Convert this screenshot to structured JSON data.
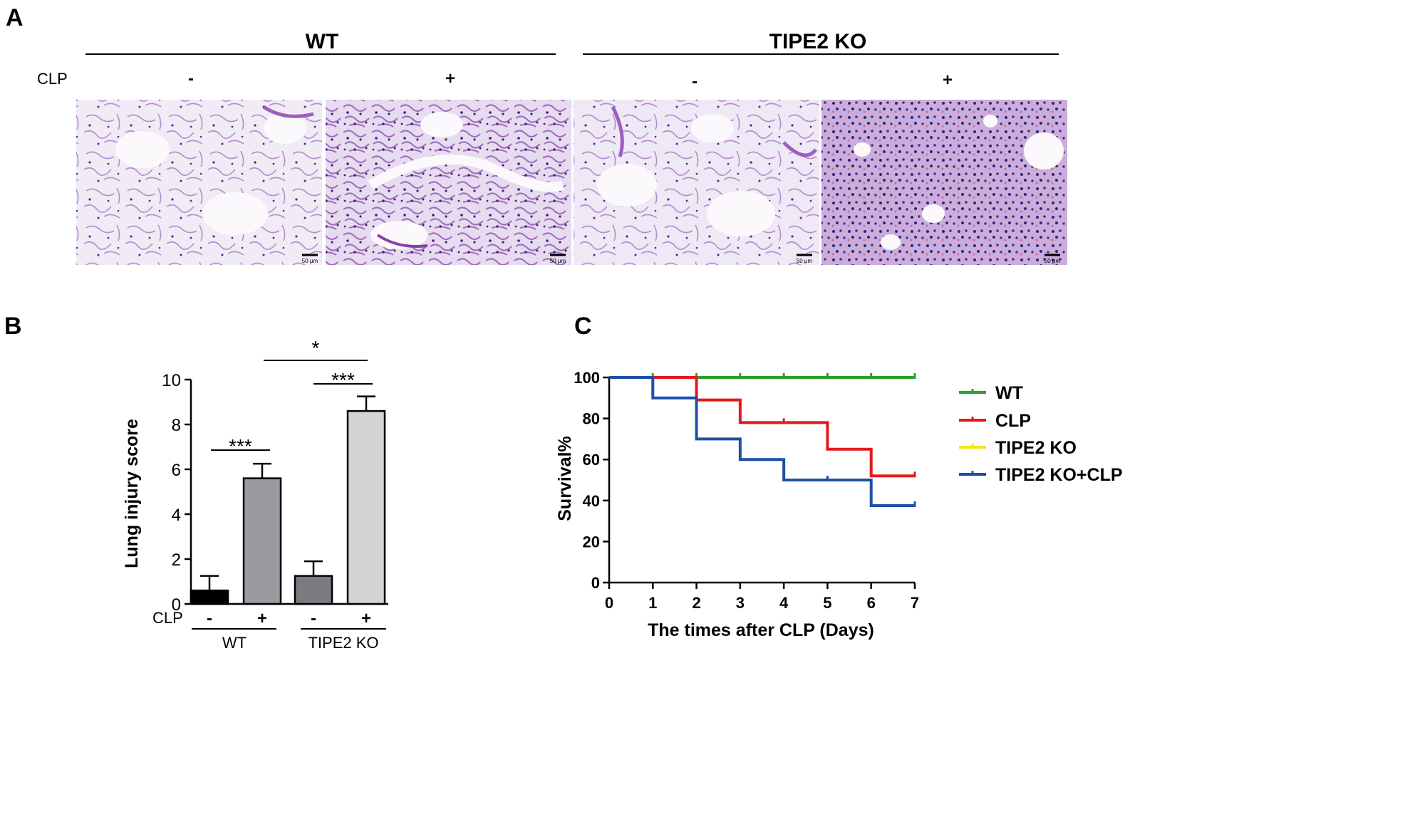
{
  "panel_labels": {
    "a": "A",
    "b": "B",
    "c": "C"
  },
  "panel_a": {
    "groups": [
      "WT",
      "TIPE2 KO"
    ],
    "row_label": "CLP",
    "conditions": [
      "-",
      "+",
      "-",
      "+"
    ],
    "scale_bar": "50 μm",
    "image_tints": [
      "#f1ebf6",
      "#e6dbef",
      "#efe8f5",
      "#d9c7e4"
    ],
    "image_names": [
      "histology-wt-sham",
      "histology-wt-clp",
      "histology-ko-sham",
      "histology-ko-clp"
    ]
  },
  "chart_data": [
    {
      "type": "bar",
      "ylabel": "Lung injury score",
      "ylim": [
        0,
        10
      ],
      "yticks": [
        0,
        2,
        4,
        6,
        8,
        10
      ],
      "row_label": "CLP",
      "categories": [
        "-",
        "+",
        "-",
        "+"
      ],
      "groups": [
        "WT",
        "TIPE2 KO"
      ],
      "values": [
        0.6,
        5.6,
        1.25,
        8.6
      ],
      "errors": [
        0.65,
        0.65,
        0.65,
        0.65
      ],
      "colors": [
        "#000000",
        "#999ba0",
        "#797b80",
        "#d3d4d6"
      ],
      "significance": [
        {
          "from": 0,
          "to": 1,
          "label": "***"
        },
        {
          "from": 2,
          "to": 3,
          "label": "***"
        },
        {
          "from": 1,
          "to": 3,
          "label": "*"
        }
      ]
    },
    {
      "type": "line",
      "xlabel": "The times after CLP (Days)",
      "ylabel": "Survival%",
      "xlim": [
        0,
        7
      ],
      "ylim": [
        0,
        100
      ],
      "xticks": [
        0,
        1,
        2,
        3,
        4,
        5,
        6,
        7
      ],
      "yticks": [
        0,
        20,
        40,
        60,
        80,
        100
      ],
      "legend_position": "right",
      "step": true,
      "series": [
        {
          "name": "WT",
          "color": "#2ca02c",
          "x": [
            0,
            7
          ],
          "y": [
            100,
            100
          ],
          "censor_x": [
            1,
            2,
            3,
            4,
            5,
            6,
            7
          ]
        },
        {
          "name": "CLP",
          "color": "#e31a1c",
          "x": [
            0,
            2,
            3,
            5,
            6,
            7
          ],
          "y": [
            100,
            89,
            78,
            65,
            52,
            52
          ],
          "censor_x": [
            2,
            4,
            7
          ]
        },
        {
          "name": "TIPE2 KO",
          "color": "#f2e51b",
          "x": [
            0,
            7
          ],
          "y": [
            100,
            100
          ],
          "censor_x": []
        },
        {
          "name": "TIPE2 KO+CLP",
          "color": "#1f4fa8",
          "x": [
            0,
            1,
            2,
            3,
            4,
            6,
            7
          ],
          "y": [
            100,
            90,
            70,
            60,
            50,
            37.5,
            37.5
          ],
          "censor_x": [
            5,
            7
          ]
        }
      ]
    }
  ]
}
